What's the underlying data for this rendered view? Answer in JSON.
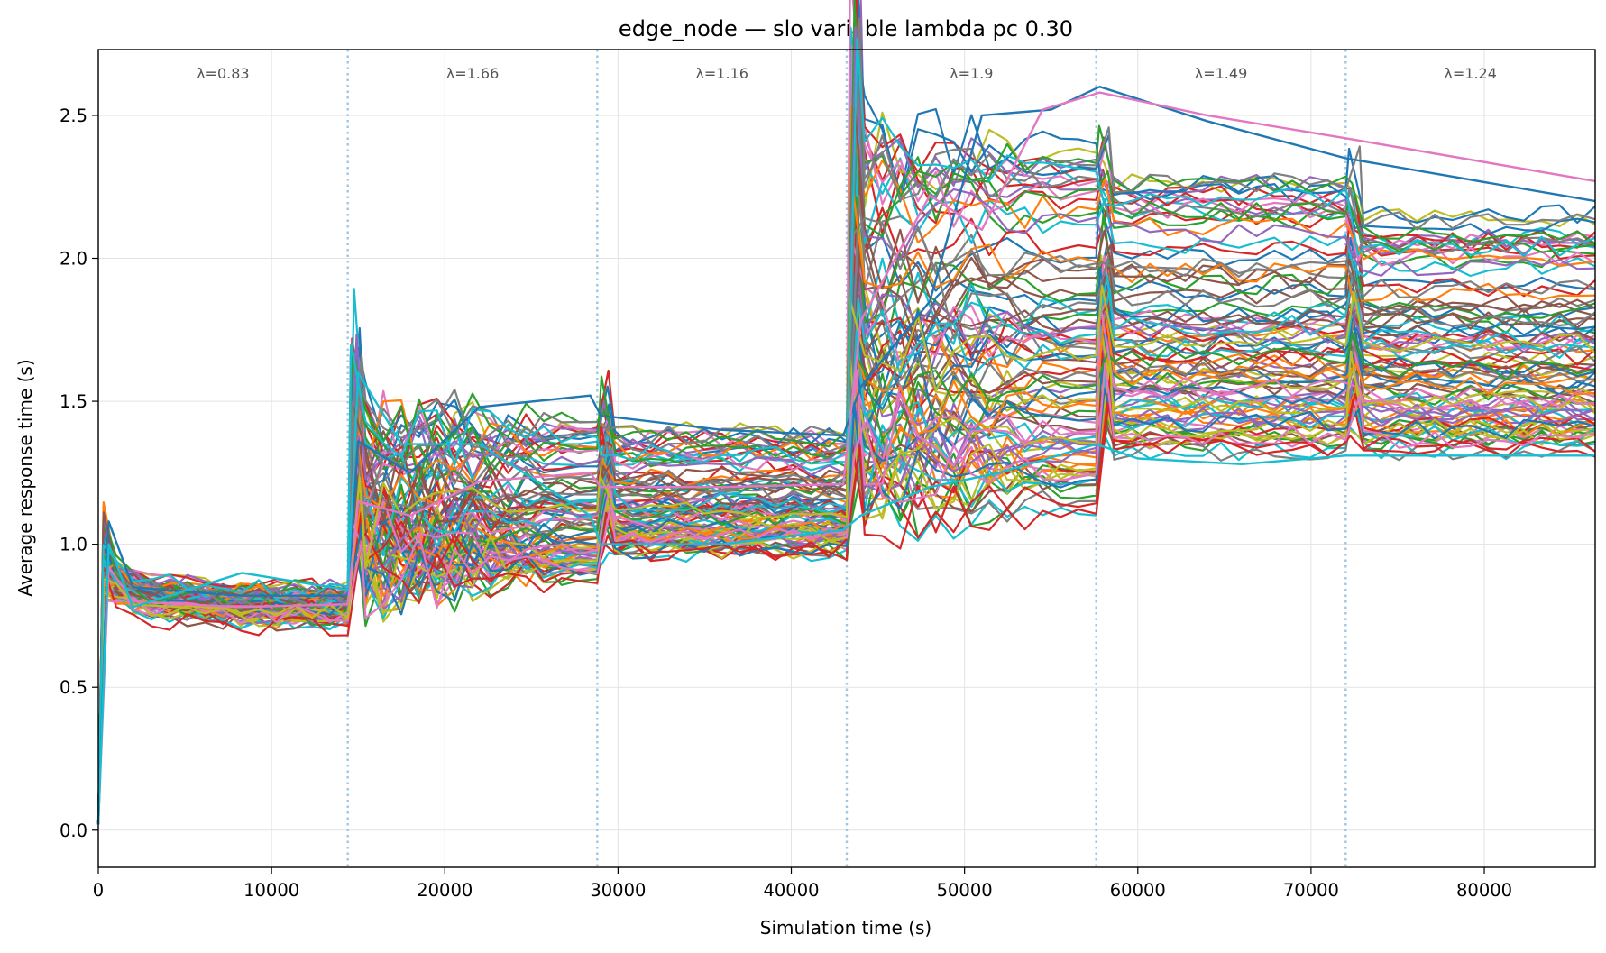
{
  "chart_data": {
    "type": "line",
    "title": "edge_node — slo variable lambda pc 0.30",
    "xlabel": "Simulation time (s)",
    "ylabel": "Average response time (s)",
    "xlim": [
      0,
      86400
    ],
    "ylim": [
      -0.13,
      2.73
    ],
    "x_ticks": [
      0,
      10000,
      20000,
      30000,
      40000,
      50000,
      60000,
      70000,
      80000
    ],
    "y_ticks": [
      0.0,
      0.5,
      1.0,
      1.5,
      2.0,
      2.5
    ],
    "x_tick_labels": [
      "0",
      "10000",
      "20000",
      "30000",
      "40000",
      "50000",
      "60000",
      "70000",
      "80000"
    ],
    "y_tick_labels": [
      "0.0",
      "0.5",
      "1.0",
      "1.5",
      "2.0",
      "2.5"
    ],
    "grid": true,
    "legend": "none",
    "num_series": 100,
    "phase_boundaries": [
      14400,
      28800,
      43200,
      57600,
      72000
    ],
    "phases": [
      {
        "x_start": 0,
        "x_end": 14400,
        "label": "λ=0.83"
      },
      {
        "x_start": 14400,
        "x_end": 28800,
        "label": "λ=1.66"
      },
      {
        "x_start": 28800,
        "x_end": 43200,
        "label": "λ=1.16"
      },
      {
        "x_start": 43200,
        "x_end": 57600,
        "label": "λ=1.9"
      },
      {
        "x_start": 57600,
        "x_end": 72000,
        "label": "λ=1.49"
      },
      {
        "x_start": 72000,
        "x_end": 86400,
        "label": "λ=1.24"
      }
    ],
    "series_profiles": {
      "description": "approximate settled average response time per phase; 100 node series, min / typical / max",
      "phase_end_values_min": [
        0.74,
        0.88,
        0.97,
        1.1,
        1.3,
        1.31
      ],
      "phase_end_values_typical": [
        0.78,
        1.05,
        1.1,
        1.6,
        1.65,
        1.62
      ],
      "phase_end_values_max": [
        0.84,
        1.52,
        1.45,
        2.6,
        2.45,
        2.27
      ],
      "example_series": [
        {
          "color": "#1f77b4",
          "x": [
            0,
            600,
            2000,
            8000,
            14400,
            15000,
            18000,
            22000,
            28400,
            29000,
            36000,
            43000,
            44000,
            48000,
            51000,
            55000,
            57800,
            64000,
            72000,
            86400
          ],
          "y": [
            0.02,
            1.08,
            0.85,
            0.82,
            0.82,
            1.36,
            1.25,
            1.48,
            1.52,
            1.45,
            1.4,
            1.38,
            1.55,
            1.85,
            2.5,
            2.52,
            2.6,
            2.48,
            2.35,
            2.2
          ]
        },
        {
          "color": "#e377c2",
          "x": [
            0,
            600,
            2000,
            8000,
            14400,
            15000,
            18000,
            22000,
            28400,
            29000,
            36000,
            43000,
            44000,
            48000,
            51000,
            54500,
            57800,
            64000,
            72000,
            86400
          ],
          "y": [
            0.02,
            0.92,
            0.8,
            0.78,
            0.79,
            1.15,
            1.1,
            1.22,
            1.25,
            1.2,
            1.2,
            1.21,
            1.78,
            2.22,
            2.1,
            2.52,
            2.58,
            2.5,
            2.42,
            2.27
          ]
        },
        {
          "color": "#17becf",
          "x": [
            0,
            600,
            2000,
            8300,
            14400,
            15000,
            17500,
            22000,
            28400,
            29000,
            36000,
            43000,
            44000,
            48000,
            52000,
            57600,
            60000,
            66000,
            72000,
            86400
          ],
          "y": [
            0.02,
            1.0,
            0.78,
            0.9,
            0.84,
            1.6,
            1.35,
            1.35,
            1.1,
            1.0,
            1.0,
            1.05,
            1.1,
            1.2,
            1.25,
            1.35,
            1.3,
            1.28,
            1.31,
            1.31
          ]
        }
      ]
    }
  }
}
